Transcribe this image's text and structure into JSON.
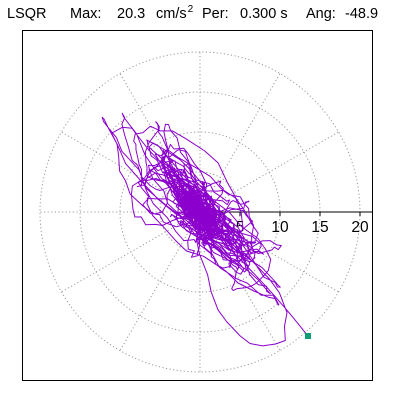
{
  "header": {
    "method": "LSQR",
    "max_label": "Max:",
    "max_value": "20.3",
    "max_unit": "cm/s",
    "max_unit_exp": "2",
    "per_label": "Per:",
    "per_value": "0.300 s",
    "ang_label": "Ang:",
    "ang_value": "-48.9"
  },
  "chart_data": {
    "type": "polar-hodogram",
    "title": "",
    "radial_axis": {
      "ticks": [
        "5",
        "10",
        "15",
        "20"
      ],
      "max": 20
    },
    "spokes_every_deg": 30,
    "series": [
      {
        "color": "#8b00cc",
        "max_amplitude": 20.3,
        "major_axis_angle_deg": -48.9
      }
    ],
    "endpoint_marker": {
      "x": 13.5,
      "y": -15.5,
      "color": "#0f9e78"
    }
  }
}
